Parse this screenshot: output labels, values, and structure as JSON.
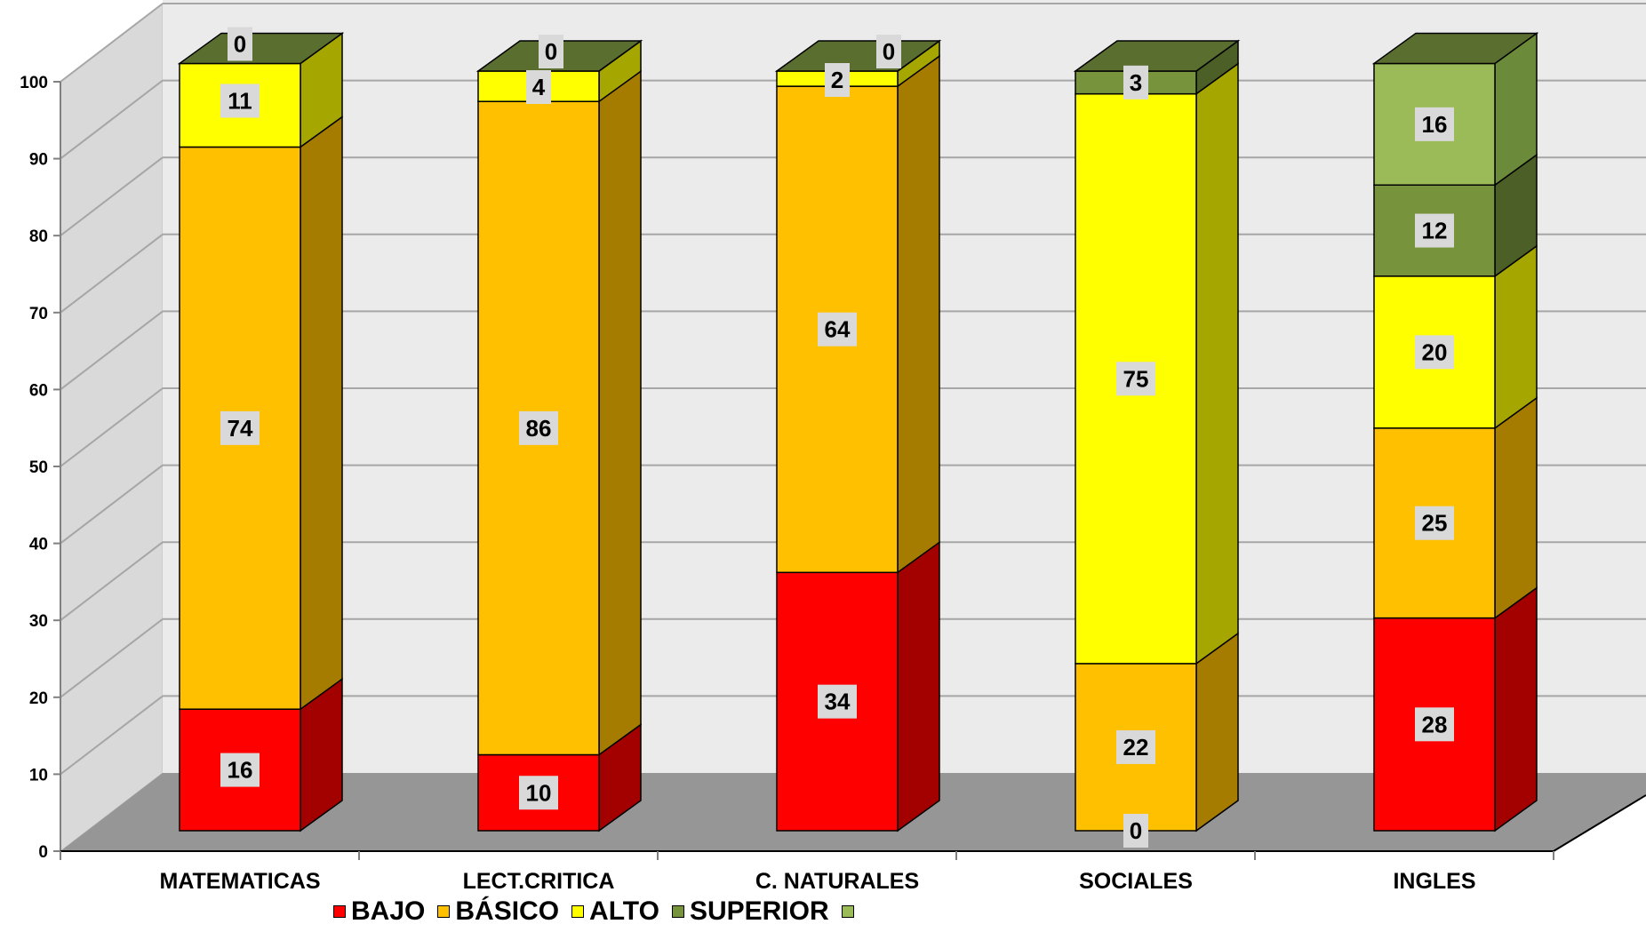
{
  "chart_data": {
    "type": "bar",
    "stacked": true,
    "three_d": true,
    "categories": [
      "MATEMATICAS",
      "LECT.CRITICA",
      "C. NATURALES",
      "SOCIALES",
      "INGLES"
    ],
    "series": [
      {
        "name": "BAJO",
        "values": [
          16,
          10,
          34,
          0,
          28
        ],
        "color": "#ff0000",
        "side_color": "#a30000"
      },
      {
        "name": "BÁSICO",
        "values": [
          74,
          86,
          64,
          22,
          25
        ],
        "color": "#ffc000",
        "side_color": "#a67c00"
      },
      {
        "name": "ALTO",
        "values": [
          11,
          4,
          2,
          75,
          20
        ],
        "color": "#ffff00",
        "side_color": "#a6a600"
      },
      {
        "name": "SUPERIOR",
        "values": [
          0,
          0,
          0,
          3,
          12
        ],
        "color": "#77933c",
        "side_color": "#4b5f26"
      },
      {
        "name": "",
        "values": [
          0,
          0,
          0,
          0,
          16
        ],
        "color": "#9bbb59",
        "side_color": "#6b8a3a"
      }
    ],
    "data_labels": [
      [
        "16",
        "74",
        "11",
        "0",
        ""
      ],
      [
        "10",
        "86",
        "4",
        "0",
        ""
      ],
      [
        "34",
        "64",
        "2",
        "0",
        ""
      ],
      [
        "0",
        "22",
        "75",
        "3",
        ""
      ],
      [
        "28",
        "25",
        "20",
        "12",
        "16"
      ]
    ],
    "ylim": [
      0,
      100
    ],
    "ytick_labels": [
      "0",
      "10",
      "20",
      "30",
      "40",
      "50",
      "60",
      "70",
      "80",
      "90",
      "100"
    ],
    "grid": true,
    "legend_position": "bottom",
    "colors": {
      "wall": "#ebebeb",
      "side_wall": "#d9d9d9",
      "floor": "#969696",
      "gridline": "#a6a6a6"
    }
  }
}
